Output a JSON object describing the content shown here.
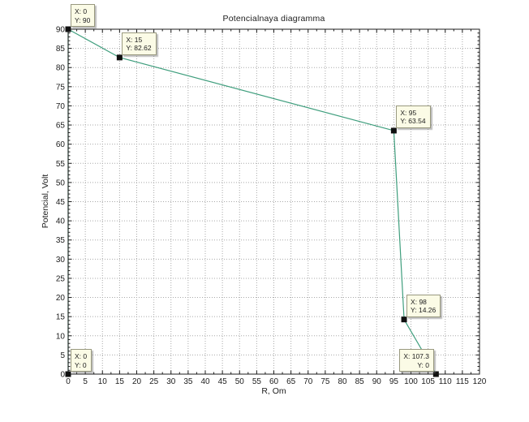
{
  "figure": {
    "background": "#ffffff"
  },
  "chart_data": {
    "type": "line",
    "title": "Potencialnaya diagramma",
    "xlabel": "R, Om",
    "ylabel": "Potencial, Volt",
    "xlim": [
      0,
      120
    ],
    "ylim": [
      0,
      90
    ],
    "x_ticks": [
      0,
      5,
      10,
      15,
      20,
      25,
      30,
      35,
      40,
      45,
      50,
      55,
      60,
      65,
      70,
      75,
      80,
      85,
      90,
      95,
      100,
      105,
      110,
      115,
      120
    ],
    "y_ticks": [
      0,
      5,
      10,
      15,
      20,
      25,
      30,
      35,
      40,
      45,
      50,
      55,
      60,
      65,
      70,
      75,
      80,
      85,
      90
    ],
    "x_minor_step": 2.5,
    "y_minor_step": 1,
    "grid": "dotted",
    "legend": "none",
    "line_color": "#3f9e7d",
    "marker": "black-square",
    "marker_color": "#111111",
    "grid_color": "#a9a9a9",
    "axis_color": "#1c1c1c",
    "datatip_bg": "#fbfbe6",
    "points": [
      [
        0,
        0
      ],
      [
        0,
        90
      ],
      [
        15,
        82.62
      ],
      [
        95,
        63.54
      ],
      [
        98,
        14.26
      ],
      [
        107.3,
        0
      ]
    ],
    "datatips": [
      {
        "x": 0,
        "y": 90,
        "label": [
          "X: 0",
          "Y: 90"
        ],
        "side": "ne"
      },
      {
        "x": 15,
        "y": 82.62,
        "label": [
          "X: 15",
          "Y: 82.62"
        ],
        "side": "ne"
      },
      {
        "x": 95,
        "y": 63.54,
        "label": [
          "X: 95",
          "Y: 63.54"
        ],
        "side": "ne"
      },
      {
        "x": 98,
        "y": 14.26,
        "label": [
          "X: 98",
          "Y: 14.26"
        ],
        "side": "ne"
      },
      {
        "x": 107.3,
        "y": 0,
        "label": [
          "X: 107.3",
          "Y: 0"
        ],
        "side": "nw"
      },
      {
        "x": 0,
        "y": 0,
        "label": [
          "X: 0",
          "Y: 0"
        ],
        "side": "ne"
      }
    ]
  }
}
